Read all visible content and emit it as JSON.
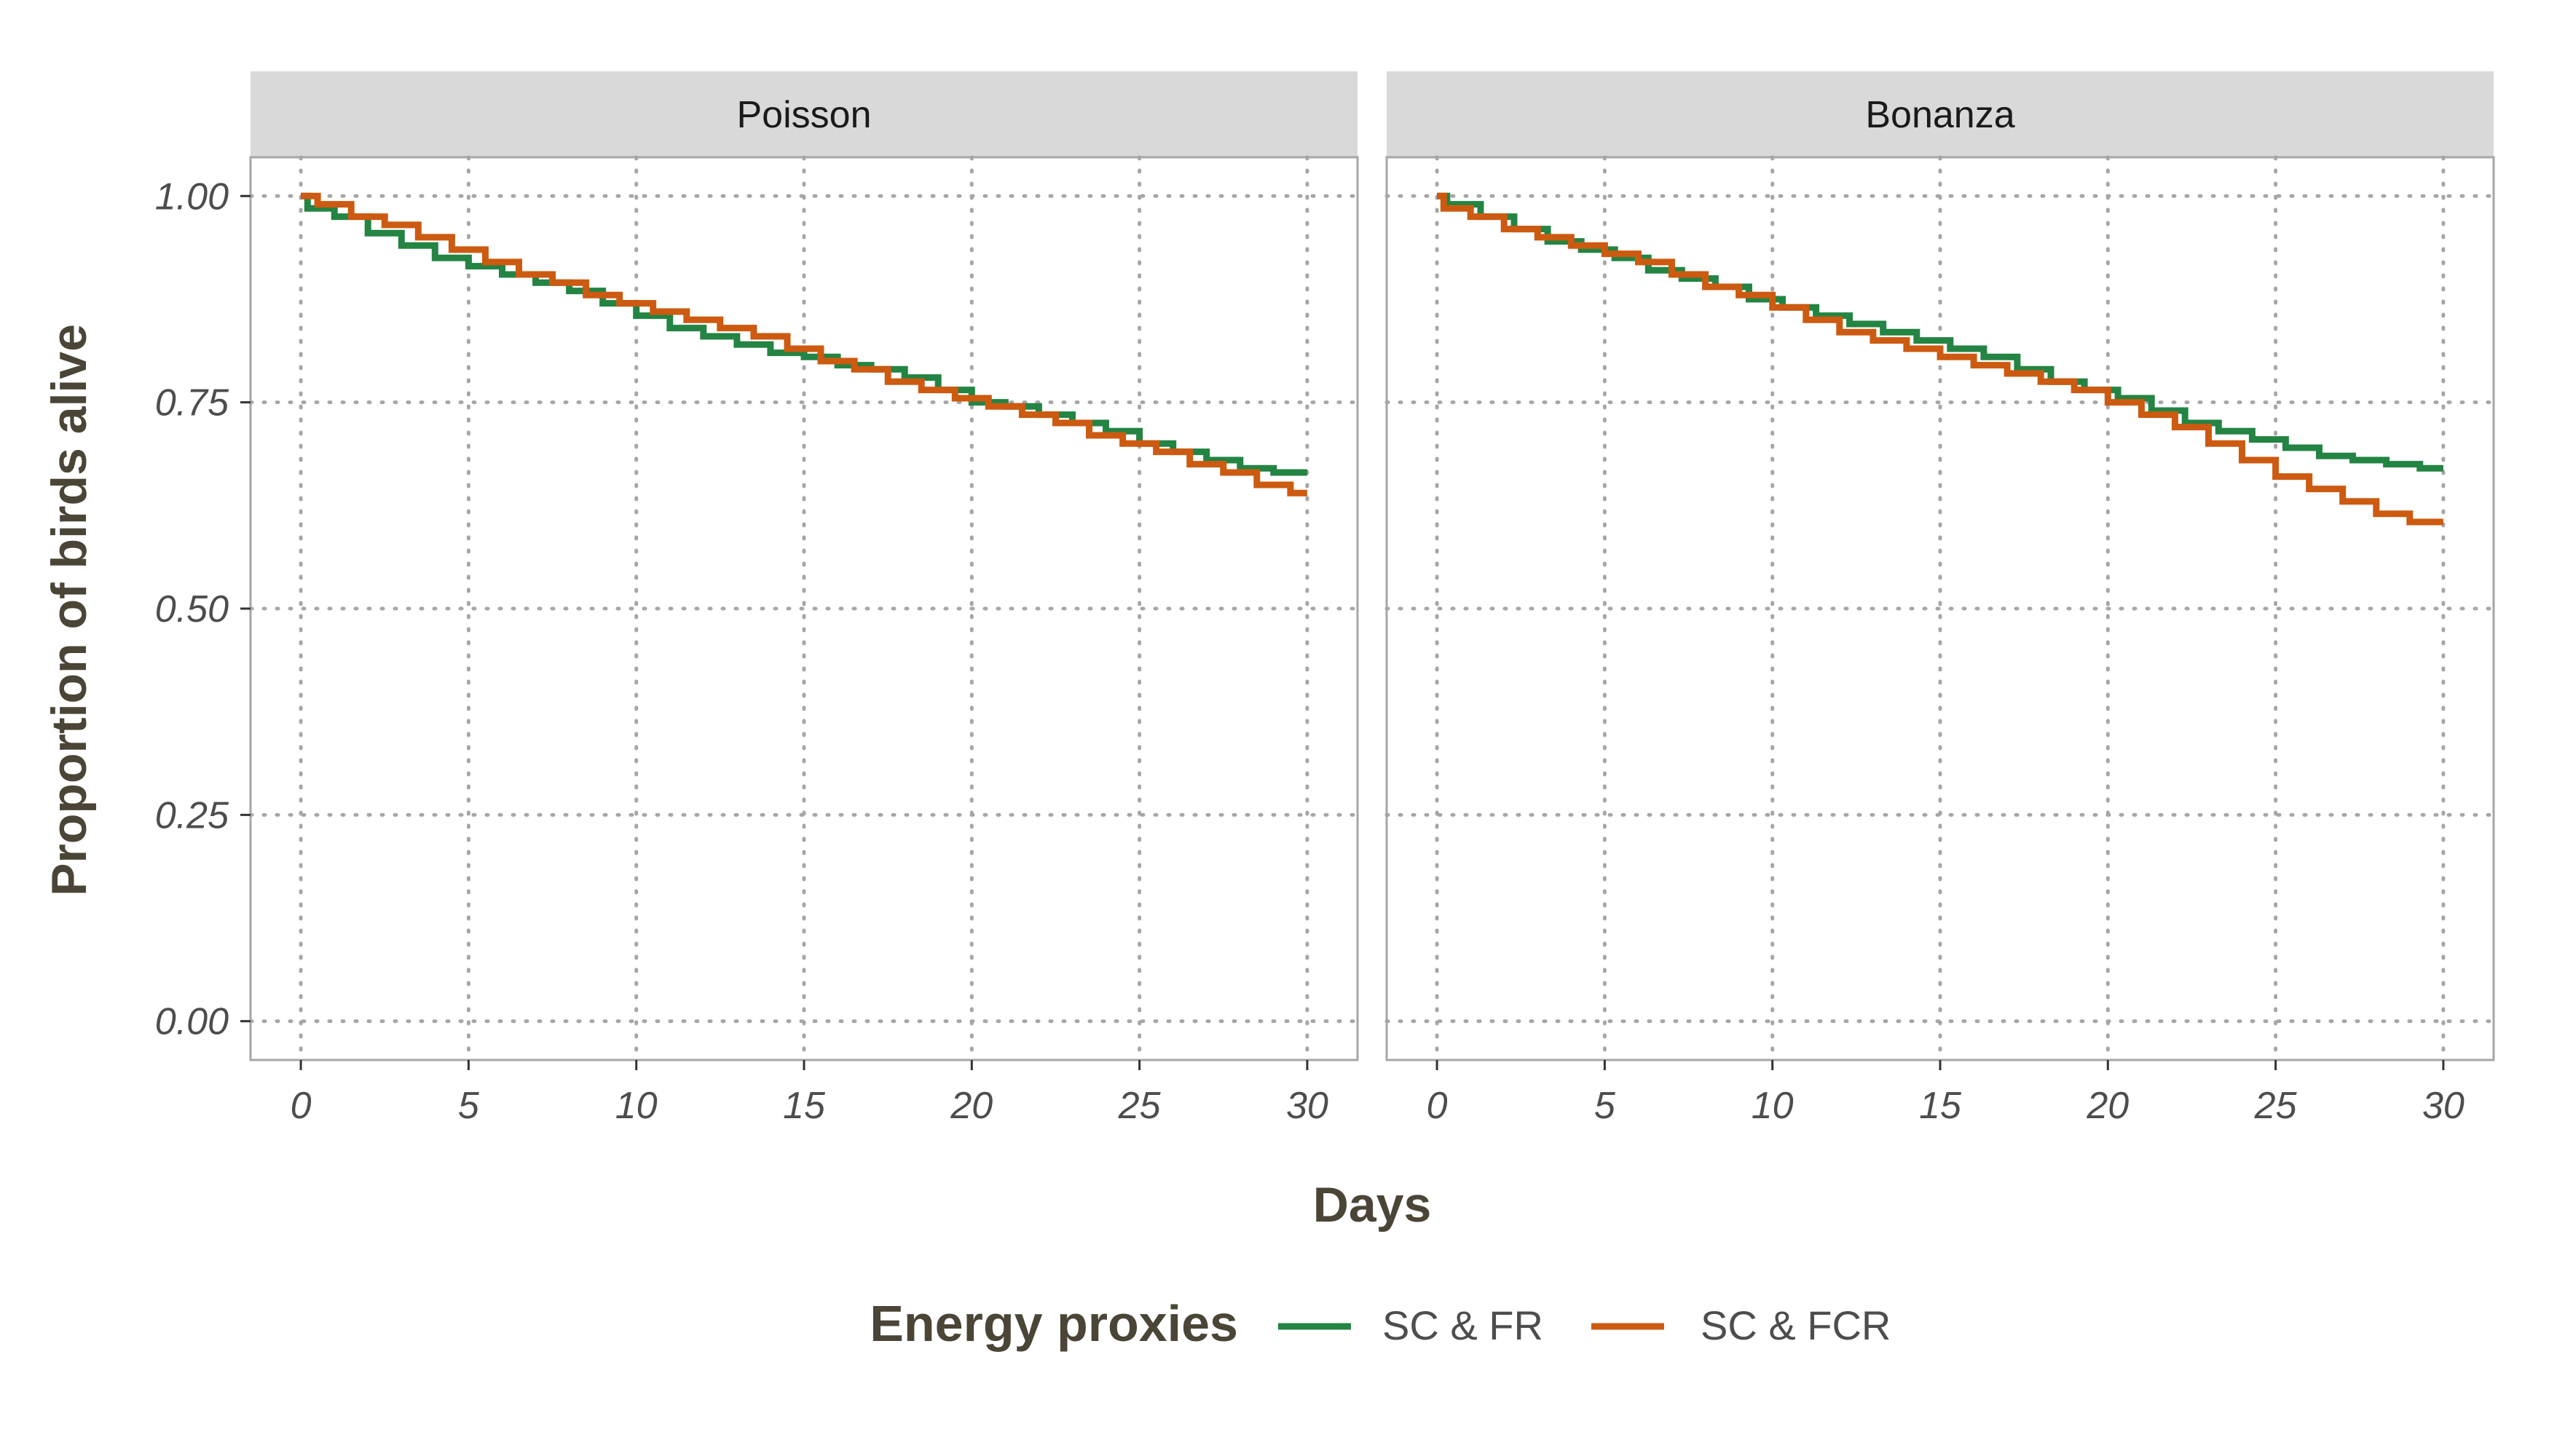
{
  "chart_data": {
    "type": "line",
    "xlabel": "Days",
    "ylabel": "Proportion of birds alive",
    "xlim": [
      -1.5,
      31.5
    ],
    "ylim": [
      -0.047,
      1.047
    ],
    "x_ticks": [
      "0",
      "5",
      "10",
      "15",
      "20",
      "25",
      "30"
    ],
    "y_ticks": [
      "0.00",
      "0.25",
      "0.50",
      "0.75",
      "1.00"
    ],
    "grid": "dotted, major x and y",
    "step": true,
    "legend": {
      "title": "Energy proxies",
      "placement": "bottom",
      "entries": [
        {
          "label": "SC & FR",
          "color": "#238443"
        },
        {
          "label": "SC & FCR",
          "color": "#cc5a10"
        }
      ]
    },
    "panels": [
      {
        "title": "Poisson",
        "series": [
          {
            "name": "SC & FR",
            "color": "#238443",
            "x": [
              0,
              0.2,
              1,
              2,
              3,
              4,
              5,
              6,
              7,
              8,
              9,
              10,
              11,
              12,
              13,
              14,
              15,
              16,
              17,
              18,
              19,
              20,
              21,
              22,
              23,
              24,
              25,
              26,
              27,
              28,
              29,
              30
            ],
            "y": [
              1.0,
              0.985,
              0.975,
              0.955,
              0.94,
              0.925,
              0.915,
              0.905,
              0.895,
              0.885,
              0.87,
              0.855,
              0.84,
              0.83,
              0.82,
              0.81,
              0.805,
              0.795,
              0.79,
              0.78,
              0.765,
              0.75,
              0.745,
              0.735,
              0.725,
              0.715,
              0.7,
              0.69,
              0.68,
              0.67,
              0.665,
              0.665
            ]
          },
          {
            "name": "SC & FCR",
            "color": "#cc5a10",
            "x": [
              0,
              0.5,
              1.5,
              2.5,
              3.5,
              4.5,
              5.5,
              6.5,
              7.5,
              8.5,
              9.5,
              10.5,
              11.5,
              12.5,
              13.5,
              14.5,
              15.5,
              16.5,
              17.5,
              18.5,
              19.5,
              20.5,
              21.5,
              22.5,
              23.5,
              24.5,
              25.5,
              26.5,
              27.5,
              28.5,
              29.5,
              30
            ],
            "y": [
              1.0,
              0.99,
              0.975,
              0.965,
              0.95,
              0.935,
              0.92,
              0.905,
              0.895,
              0.88,
              0.87,
              0.86,
              0.85,
              0.84,
              0.83,
              0.815,
              0.8,
              0.79,
              0.775,
              0.765,
              0.755,
              0.745,
              0.735,
              0.725,
              0.71,
              0.7,
              0.69,
              0.675,
              0.665,
              0.65,
              0.64,
              0.64
            ]
          }
        ]
      },
      {
        "title": "Bonanza",
        "series": [
          {
            "name": "SC & FR",
            "color": "#238443",
            "x": [
              0,
              0.3,
              1.3,
              2.3,
              3.3,
              4.3,
              5.3,
              6.3,
              7.3,
              8.3,
              9.3,
              10.3,
              11.3,
              12.3,
              13.3,
              14.3,
              15.3,
              16.3,
              17.3,
              18.3,
              19.3,
              20.3,
              21.3,
              22.3,
              23.3,
              24.3,
              25.3,
              26.3,
              27.3,
              28.3,
              29.3,
              30
            ],
            "y": [
              1.0,
              0.99,
              0.975,
              0.96,
              0.945,
              0.935,
              0.925,
              0.91,
              0.9,
              0.89,
              0.875,
              0.865,
              0.855,
              0.845,
              0.835,
              0.825,
              0.815,
              0.805,
              0.79,
              0.775,
              0.765,
              0.755,
              0.74,
              0.725,
              0.715,
              0.705,
              0.695,
              0.685,
              0.68,
              0.675,
              0.67,
              0.67
            ]
          },
          {
            "name": "SC & FCR",
            "color": "#cc5a10",
            "x": [
              0,
              0.2,
              1,
              2,
              3,
              4,
              5,
              6,
              7,
              8,
              9,
              10,
              11,
              12,
              13,
              14,
              15,
              16,
              17,
              18,
              19,
              20,
              21,
              22,
              23,
              24,
              25,
              26,
              27,
              28,
              29,
              30
            ],
            "y": [
              1.0,
              0.985,
              0.975,
              0.96,
              0.95,
              0.94,
              0.93,
              0.92,
              0.905,
              0.89,
              0.88,
              0.865,
              0.85,
              0.835,
              0.825,
              0.815,
              0.805,
              0.795,
              0.785,
              0.775,
              0.765,
              0.75,
              0.735,
              0.72,
              0.7,
              0.68,
              0.66,
              0.645,
              0.63,
              0.615,
              0.605,
              0.605
            ]
          }
        ]
      }
    ]
  }
}
